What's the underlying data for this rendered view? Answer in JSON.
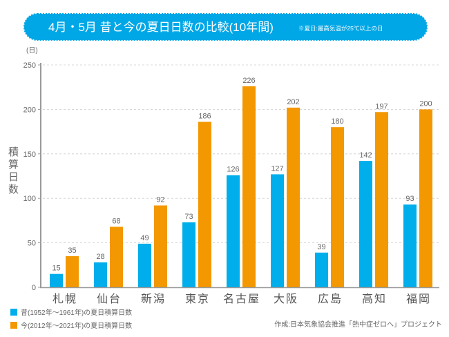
{
  "header": {
    "title": "4月・5月 昔と今の夏日日数の比較(10年間)",
    "note": "※夏日:最高気温が25℃以上の日",
    "banner_color": "#00A7E6"
  },
  "chart_data": {
    "type": "bar",
    "title": "4月・5月 昔と今の夏日日数の比較(10年間)",
    "subtitle": "※夏日:最高気温が25℃以上の日",
    "xlabel": "",
    "ylabel": "積算日数",
    "yunit": "(日)",
    "ylim": [
      0,
      250
    ],
    "yticks": [
      0,
      50,
      100,
      150,
      200,
      250
    ],
    "ytick_labels": [
      "0",
      "50",
      "100",
      "150",
      "200",
      "250"
    ],
    "grid": true,
    "legend": "bottom-left",
    "categories": [
      "札幌",
      "仙台",
      "新潟",
      "東京",
      "名古屋",
      "大阪",
      "広島",
      "高知",
      "福岡"
    ],
    "series": [
      {
        "name": "昔(1952年～1961年)の夏日積算日数",
        "color": "#00AEEB",
        "values": [
          15,
          28,
          49,
          73,
          126,
          127,
          39,
          142,
          93
        ],
        "labels": [
          "15",
          "28",
          "49",
          "73",
          "126",
          "127",
          "39",
          "142",
          "93"
        ]
      },
      {
        "name": "今(2012年～2021年)の夏日積算日数",
        "color": "#F39800",
        "values": [
          35,
          68,
          92,
          186,
          226,
          202,
          180,
          197,
          200
        ],
        "labels": [
          "35",
          "68",
          "92",
          "186",
          "226",
          "202",
          "180",
          "197",
          "200"
        ]
      }
    ]
  },
  "footer": {
    "credit": "作成:日本気象協会推進「熱中症ゼロへ」プロジェクト"
  }
}
